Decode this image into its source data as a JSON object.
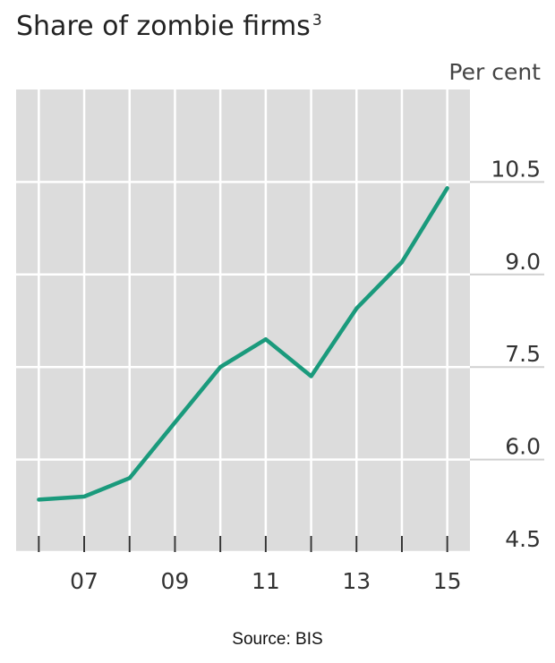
{
  "chart_data": {
    "type": "line",
    "title": "Share of zombie firms",
    "title_superscript": "3",
    "unit": "Per cent",
    "source": "Source: BIS",
    "x_tick_labels": [
      "07",
      "09",
      "11",
      "13",
      "15"
    ],
    "x_tick_values": [
      2007,
      2009,
      2011,
      2013,
      2015
    ],
    "y_tick_labels": [
      "4.5",
      "6.0",
      "7.5",
      "9.0",
      "10.5"
    ],
    "y_tick_values": [
      4.5,
      6.0,
      7.5,
      9.0,
      10.5
    ],
    "xlim": [
      2005.5,
      2015.5
    ],
    "ylim": [
      4.5,
      12.0
    ],
    "grid": true,
    "series": [
      {
        "color": "#1a9a7c",
        "x": [
          2006,
          2007,
          2008,
          2009,
          2010,
          2011,
          2012,
          2013,
          2014,
          2015
        ],
        "y": [
          5.35,
          5.4,
          5.7,
          6.6,
          7.5,
          7.95,
          7.35,
          8.45,
          9.2,
          10.4
        ]
      }
    ]
  },
  "colors": {
    "plot_background": "#dcdcdc",
    "grid": "#ffffff",
    "line": "#1a9a7c",
    "tick": "#333333"
  }
}
